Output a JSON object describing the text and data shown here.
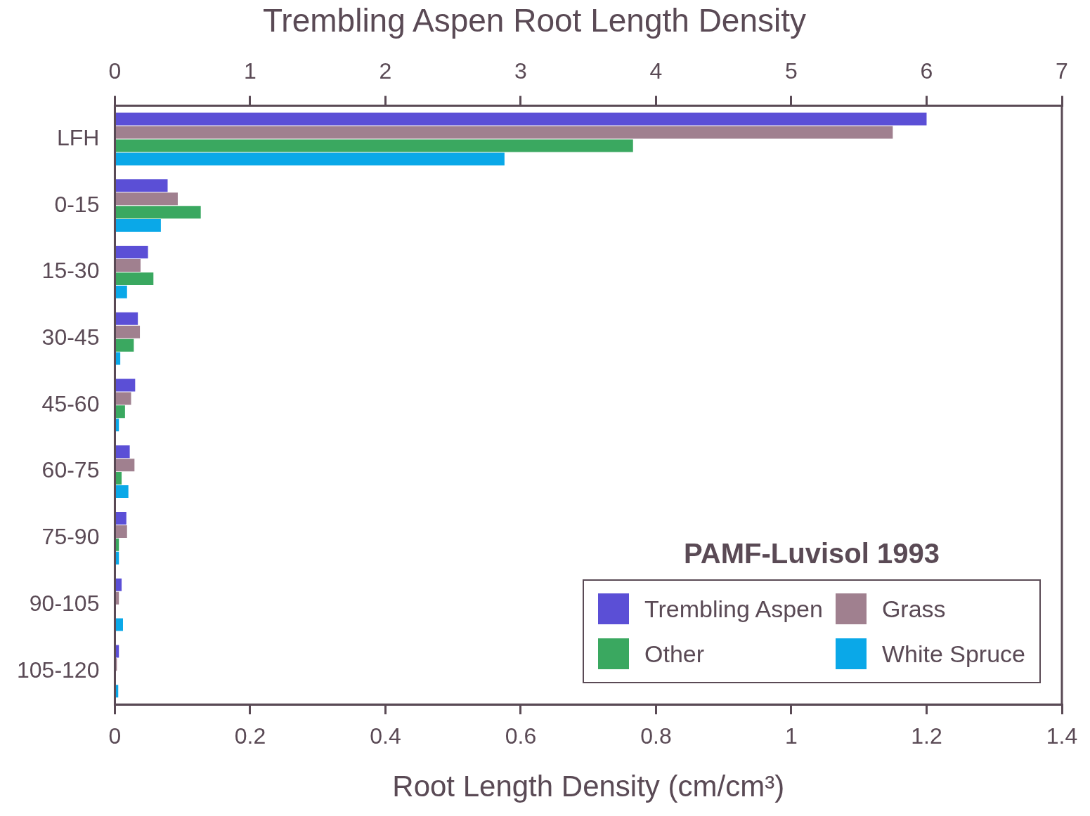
{
  "chart_data": {
    "type": "bar",
    "orientation": "horizontal",
    "title": "Trembling Aspen Root Length Density",
    "xlabel": "Root Length Density (cm/cm³)",
    "legend_title": "PAMF-Luvisol 1993",
    "legend": "bottom right",
    "grid": false,
    "categories": [
      "LFH",
      "0-15",
      "15-30",
      "30-45",
      "45-60",
      "60-75",
      "75-90",
      "90-105",
      "105-120"
    ],
    "xlim": [
      0,
      1.4
    ],
    "xticks": [
      0,
      0.2,
      0.4,
      0.6,
      0.8,
      1,
      1.2,
      1.4
    ],
    "x2lim": [
      0,
      7
    ],
    "x2ticks": [
      0,
      1,
      2,
      3,
      4,
      5,
      6,
      7
    ],
    "series": [
      {
        "name": "Trembling Aspen",
        "color": "#5b4fd6",
        "values": [
          null,
          0.078,
          0.049,
          0.034,
          0.03,
          0.022,
          0.017,
          0.01,
          0.006
        ]
      },
      {
        "name": "Grass",
        "color": "#a0808f",
        "values": [
          null,
          0.093,
          0.038,
          0.037,
          0.024,
          0.029,
          0.018,
          0.006,
          0.003
        ]
      },
      {
        "name": "Other",
        "color": "#3aa860",
        "values": [
          null,
          0.127,
          0.057,
          0.028,
          0.015,
          0.01,
          0.006,
          null,
          null
        ]
      },
      {
        "name": "White Spruce",
        "color": "#0aa8e8",
        "values": [
          null,
          0.068,
          0.018,
          0.008,
          0.006,
          0.02,
          0.006,
          0.012,
          0.005
        ]
      },
      {
        "color": "#5b4fd6",
        "axis": "x2",
        "values": [
          6.0,
          null,
          null,
          null,
          null,
          null,
          null,
          null,
          null
        ]
      },
      {
        "color": "#a0808f",
        "axis": "x2",
        "values": [
          5.75,
          null,
          null,
          null,
          null,
          null,
          null,
          null,
          null
        ]
      },
      {
        "color": "#3aa860",
        "axis": "x2",
        "values": [
          3.83,
          null,
          null,
          null,
          null,
          null,
          null,
          null,
          null
        ]
      },
      {
        "color": "#0aa8e8",
        "axis": "x2",
        "values": [
          2.88,
          null,
          null,
          null,
          null,
          null,
          null,
          null,
          null
        ]
      }
    ]
  }
}
